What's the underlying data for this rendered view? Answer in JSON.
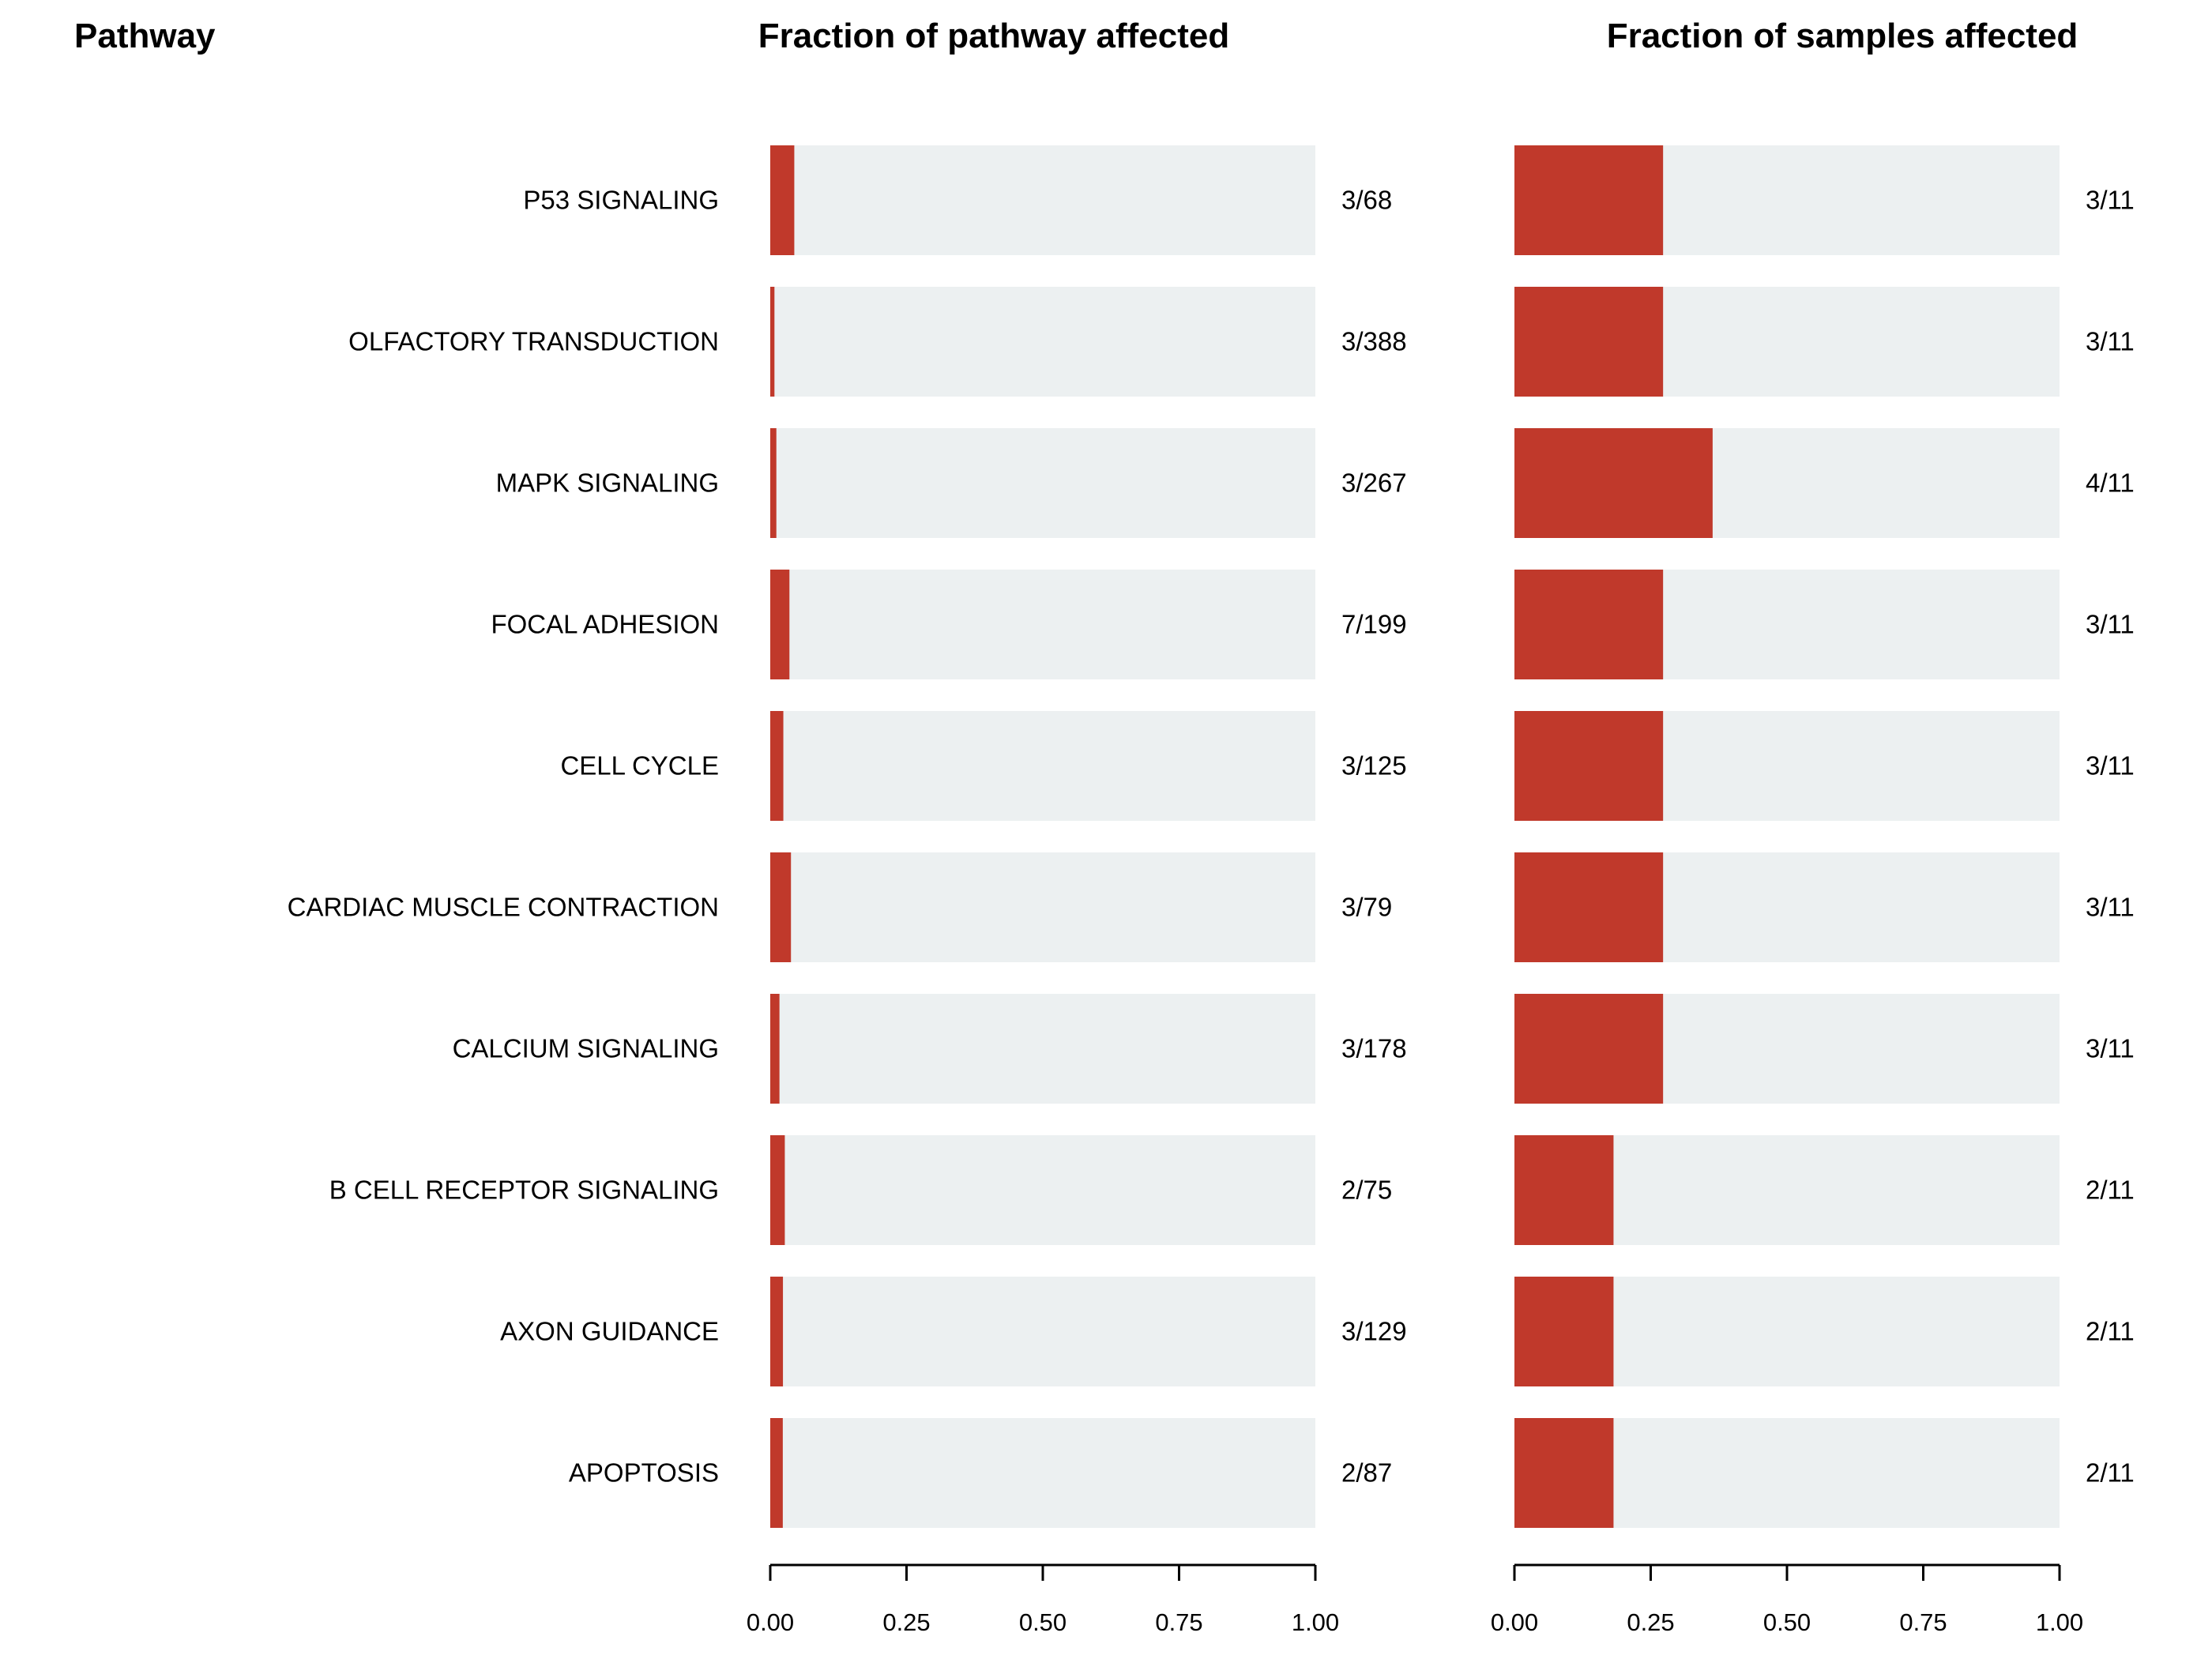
{
  "headers": {
    "pathway": "Pathway",
    "fraction_pathway": "Fraction of pathway affected",
    "fraction_samples": "Fraction of samples affected"
  },
  "colors": {
    "bar_fill": "#c0392b",
    "bar_background": "#ecf0f1",
    "axis": "#000000"
  },
  "chart_data": [
    {
      "type": "bar",
      "orientation": "horizontal",
      "title": "Fraction of pathway affected",
      "categories": [
        "P53 SIGNALING",
        "OLFACTORY TRANSDUCTION",
        "MAPK SIGNALING",
        "FOCAL ADHESION",
        "CELL CYCLE",
        "CARDIAC MUSCLE CONTRACTION",
        "CALCIUM SIGNALING",
        "B CELL RECEPTOR SIGNALING",
        "AXON GUIDANCE",
        "APOPTOSIS"
      ],
      "labels": [
        "3/68",
        "3/388",
        "3/267",
        "7/199",
        "3/125",
        "3/79",
        "3/178",
        "2/75",
        "3/129",
        "2/87"
      ],
      "values": [
        0.0441,
        0.0077,
        0.0112,
        0.0352,
        0.024,
        0.038,
        0.0169,
        0.0267,
        0.0233,
        0.023
      ],
      "xlim": [
        0,
        1
      ],
      "xticks": [
        "0.00",
        "0.25",
        "0.50",
        "0.75",
        "1.00"
      ],
      "grid": false
    },
    {
      "type": "bar",
      "orientation": "horizontal",
      "title": "Fraction of samples affected",
      "categories": [
        "P53 SIGNALING",
        "OLFACTORY TRANSDUCTION",
        "MAPK SIGNALING",
        "FOCAL ADHESION",
        "CELL CYCLE",
        "CARDIAC MUSCLE CONTRACTION",
        "CALCIUM SIGNALING",
        "B CELL RECEPTOR SIGNALING",
        "AXON GUIDANCE",
        "APOPTOSIS"
      ],
      "labels": [
        "3/11",
        "3/11",
        "4/11",
        "3/11",
        "3/11",
        "3/11",
        "3/11",
        "2/11",
        "2/11",
        "2/11"
      ],
      "values": [
        0.2727,
        0.2727,
        0.3636,
        0.2727,
        0.2727,
        0.2727,
        0.2727,
        0.1818,
        0.1818,
        0.1818
      ],
      "xlim": [
        0,
        1
      ],
      "xticks": [
        "0.00",
        "0.25",
        "0.50",
        "0.75",
        "1.00"
      ],
      "grid": false
    }
  ]
}
